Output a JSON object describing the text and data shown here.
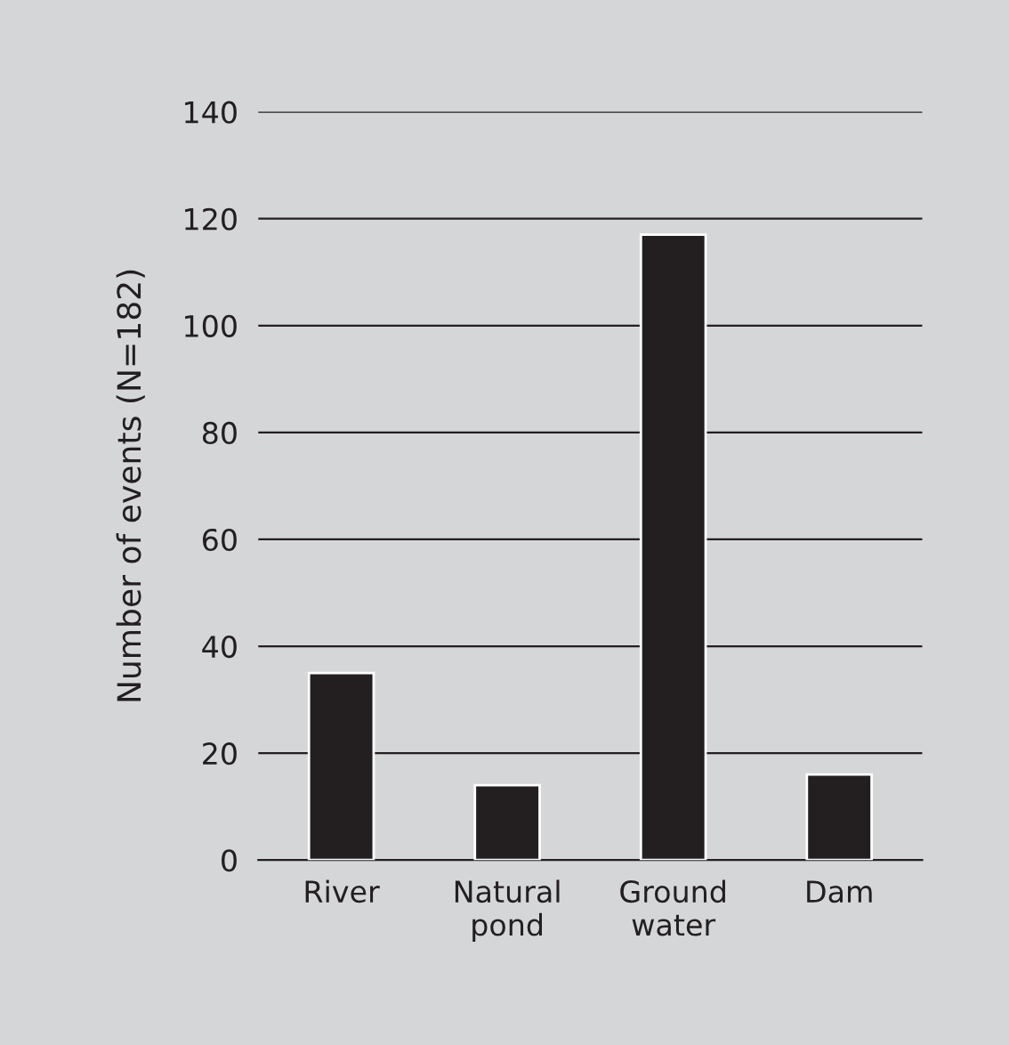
{
  "chart_data": {
    "type": "bar",
    "ylabel": "Number of events (N=182)",
    "categories": [
      "River",
      "Natural\npond",
      "Ground\nwater",
      "Dam"
    ],
    "values": [
      35,
      14,
      117,
      16
    ],
    "color": "#231f20",
    "ylim": [
      0,
      140
    ],
    "yticks": [
      0,
      20,
      40,
      60,
      80,
      100,
      120,
      140
    ],
    "grid": "y",
    "legend": false
  }
}
